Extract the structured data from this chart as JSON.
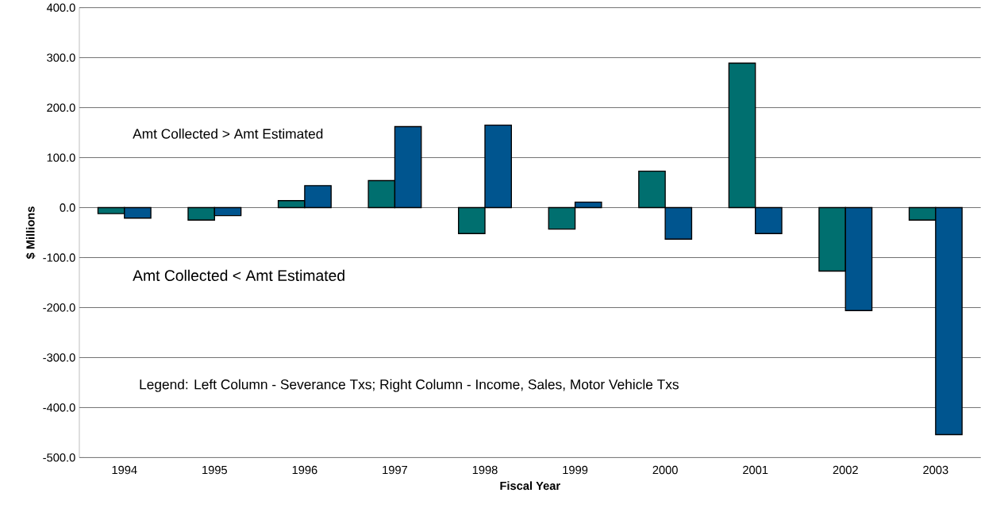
{
  "chart_data": {
    "type": "bar",
    "xlabel": "Fiscal Year",
    "ylabel": "$ Millions",
    "categories": [
      "1994",
      "1995",
      "1996",
      "1997",
      "1998",
      "1999",
      "2000",
      "2001",
      "2002",
      "2003"
    ],
    "series": [
      {
        "color": "#006f6f",
        "values": [
          -12,
          -25,
          14,
          54,
          -52,
          -43,
          73,
          289,
          -127,
          -25
        ]
      },
      {
        "color": "#00558f",
        "values": [
          -21,
          -16,
          44,
          162,
          165,
          11,
          -63,
          -52,
          -206,
          -454
        ]
      }
    ],
    "ylim": [
      -500,
      400
    ],
    "yticks": [
      {
        "value": -500,
        "label": "-500.0"
      },
      {
        "value": -400,
        "label": "-400.0"
      },
      {
        "value": -300,
        "label": "-300.0"
      },
      {
        "value": -200,
        "label": "-200.0"
      },
      {
        "value": -100,
        "label": "-100.0"
      },
      {
        "value": 0,
        "label": "0.0"
      },
      {
        "value": 100,
        "label": "100.0"
      },
      {
        "value": 200,
        "label": "200.0"
      },
      {
        "value": 300,
        "label": "300.0"
      },
      {
        "value": 400,
        "label": "400.0"
      }
    ],
    "grid": "y",
    "annotations": [
      "Amt Collected > Amt Estimated",
      "Amt Collected < Amt Estimated",
      "Legend: Left Column - Severance Txs; Right Column - Income, Sales, Motor Vehicle Txs"
    ]
  }
}
